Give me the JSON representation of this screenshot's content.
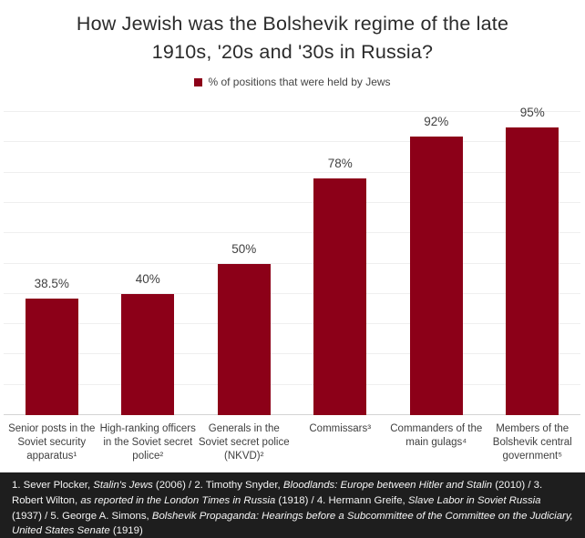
{
  "title": "How Jewish was the Bolshevik regime of the late\n1910s, '20s and '30s in Russia?",
  "legend": {
    "label": "% of positions that were held by Jews"
  },
  "colors": {
    "bar": "#8C0018",
    "gridline": "#EFEFEF",
    "axis_line": "#D4D4D4",
    "title_text": "#2B2B2B",
    "label_text": "#404040",
    "footer_bg": "#1E1E1E",
    "footer_text": "#F5F5F5"
  },
  "chart_data": {
    "type": "bar",
    "title": "How Jewish was the Bolshevik regime of the late 1910s, '20s and '30s in Russia?",
    "legend_entries": [
      "% of positions that were held by Jews"
    ],
    "legend_position": "top-center",
    "categories": [
      "Senior posts in the Soviet security apparatus¹",
      "High-ranking officers in the Soviet secret police²",
      "Generals in the Soviet secret police (NKVD)²",
      "Commissars³",
      "Commanders of the main gulags⁴",
      "Members of the Bolshevik central government⁵"
    ],
    "values": [
      38.5,
      40,
      50,
      78,
      92,
      95
    ],
    "value_labels": [
      "38.5%",
      "40%",
      "50%",
      "78%",
      "92%",
      "95%"
    ],
    "xlabel": "",
    "ylabel": "",
    "ylim": [
      0,
      100
    ],
    "grid": "horizontal gridlines every 10%, no y-axis tick labels",
    "bar_color": "#8C0018"
  },
  "footer": {
    "segments": [
      {
        "text": "1. Sever Plocker, ",
        "italic": false
      },
      {
        "text": "Stalin's Jews",
        "italic": true
      },
      {
        "text": " (2006) / 2. Timothy Snyder, ",
        "italic": false
      },
      {
        "text": "Bloodlands: Europe between Hitler and Stalin",
        "italic": true
      },
      {
        "text": " (2010) / 3. Robert Wilton, ",
        "italic": false
      },
      {
        "text": "as reported in the London Times in Russia",
        "italic": true
      },
      {
        "text": " (1918) / 4. Hermann Greife, ",
        "italic": false
      },
      {
        "text": "Slave Labor in Soviet Russia",
        "italic": true
      },
      {
        "text": " (1937) / 5. George A. Simons, ",
        "italic": false
      },
      {
        "text": "Bolshevik Propaganda: Hearings before a Subcommittee of the Committee on the Judiciary, United States Senate",
        "italic": true
      },
      {
        "text": " (1919)",
        "italic": false
      }
    ]
  }
}
